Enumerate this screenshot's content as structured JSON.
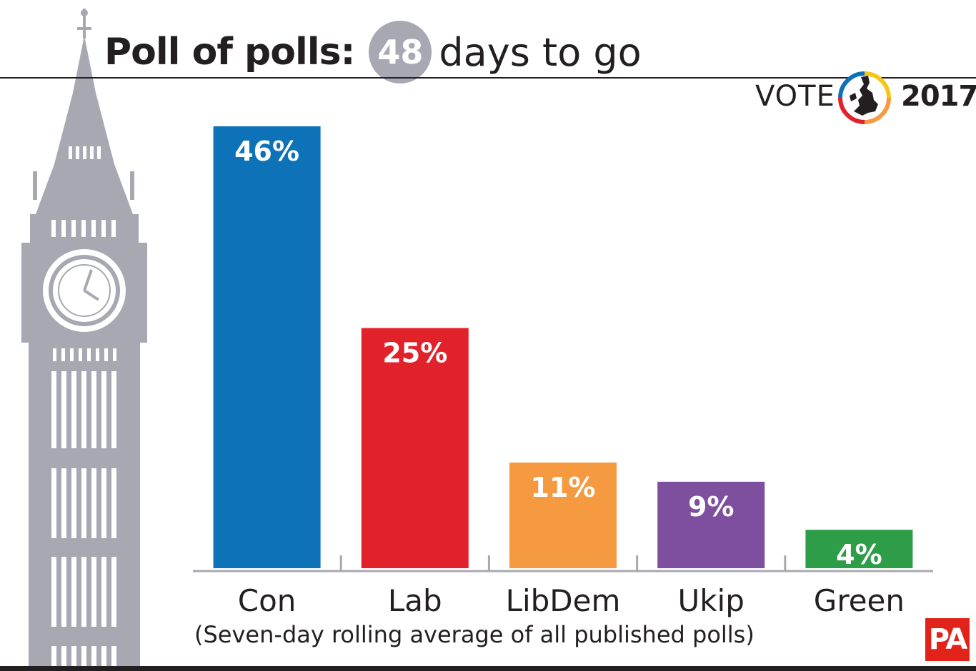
{
  "header": {
    "title_bold": "Poll of polls:",
    "days_value": "48",
    "title_rest": "days to go"
  },
  "logo": {
    "vote_word": "VOTE",
    "year": "2017"
  },
  "footer": {
    "note": "(Seven-day rolling average of all published polls)",
    "agency": "PA"
  },
  "colors": {
    "Con": "#0e72b8",
    "Lab": "#e1222b",
    "LibDem": "#f59a40",
    "Ukip": "#7e4f9f",
    "Green": "#2e9d47",
    "axis": "#a7a8b2",
    "tower": "#a7a8b2"
  },
  "chart_data": {
    "type": "bar",
    "categories": [
      "Con",
      "Lab",
      "LibDem",
      "Ukip",
      "Green"
    ],
    "values": [
      46,
      25,
      11,
      9,
      4
    ],
    "value_labels": [
      "46%",
      "25%",
      "11%",
      "9%",
      "4%"
    ],
    "unit": "%",
    "ylim": [
      0,
      48
    ],
    "grid": false,
    "legend": "none"
  }
}
